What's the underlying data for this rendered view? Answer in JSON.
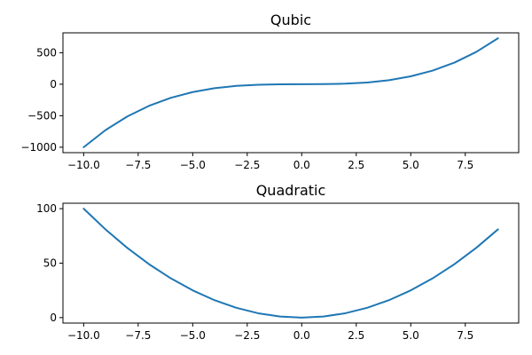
{
  "chart_data": [
    {
      "type": "line",
      "title": "Qubic",
      "xlabel": "",
      "ylabel": "",
      "x": [
        -10,
        -9,
        -8,
        -7,
        -6,
        -5,
        -4,
        -3,
        -2,
        -1,
        0,
        1,
        2,
        3,
        4,
        5,
        6,
        7,
        8,
        9
      ],
      "series": [
        {
          "values": [
            -1000,
            -729,
            -512,
            -343,
            -216,
            -125,
            -64,
            -27,
            -8,
            -1,
            0,
            1,
            8,
            27,
            64,
            125,
            216,
            343,
            512,
            729
          ],
          "color": "#1f77b4"
        }
      ],
      "xlim": [
        -10.95,
        9.95
      ],
      "ylim": [
        -1086.45,
        815.45
      ],
      "xticks": [
        -10.0,
        -7.5,
        -5.0,
        -2.5,
        0.0,
        2.5,
        5.0,
        7.5
      ],
      "xtick_labels": [
        "−10.0",
        "−7.5",
        "−5.0",
        "−2.5",
        "0.0",
        "2.5",
        "5.0",
        "7.5"
      ],
      "yticks": [
        -1000,
        -500,
        0,
        500
      ],
      "ytick_labels": [
        "−1000",
        "−500",
        "0",
        "500"
      ],
      "grid": false,
      "legend": "none"
    },
    {
      "type": "line",
      "title": "Quadratic",
      "xlabel": "",
      "ylabel": "",
      "x": [
        -10,
        -9,
        -8,
        -7,
        -6,
        -5,
        -4,
        -3,
        -2,
        -1,
        0,
        1,
        2,
        3,
        4,
        5,
        6,
        7,
        8,
        9
      ],
      "series": [
        {
          "values": [
            100,
            81,
            64,
            49,
            36,
            25,
            16,
            9,
            4,
            1,
            0,
            1,
            4,
            9,
            16,
            25,
            36,
            49,
            64,
            81
          ],
          "color": "#1f77b4"
        }
      ],
      "xlim": [
        -10.95,
        9.95
      ],
      "ylim": [
        -5,
        105
      ],
      "xticks": [
        -10.0,
        -7.5,
        -5.0,
        -2.5,
        0.0,
        2.5,
        5.0,
        7.5
      ],
      "xtick_labels": [
        "−10.0",
        "−7.5",
        "−5.0",
        "−2.5",
        "0.0",
        "2.5",
        "5.0",
        "7.5"
      ],
      "yticks": [
        0,
        50,
        100
      ],
      "ytick_labels": [
        "0",
        "50",
        "100"
      ],
      "grid": false,
      "legend": "none"
    }
  ]
}
